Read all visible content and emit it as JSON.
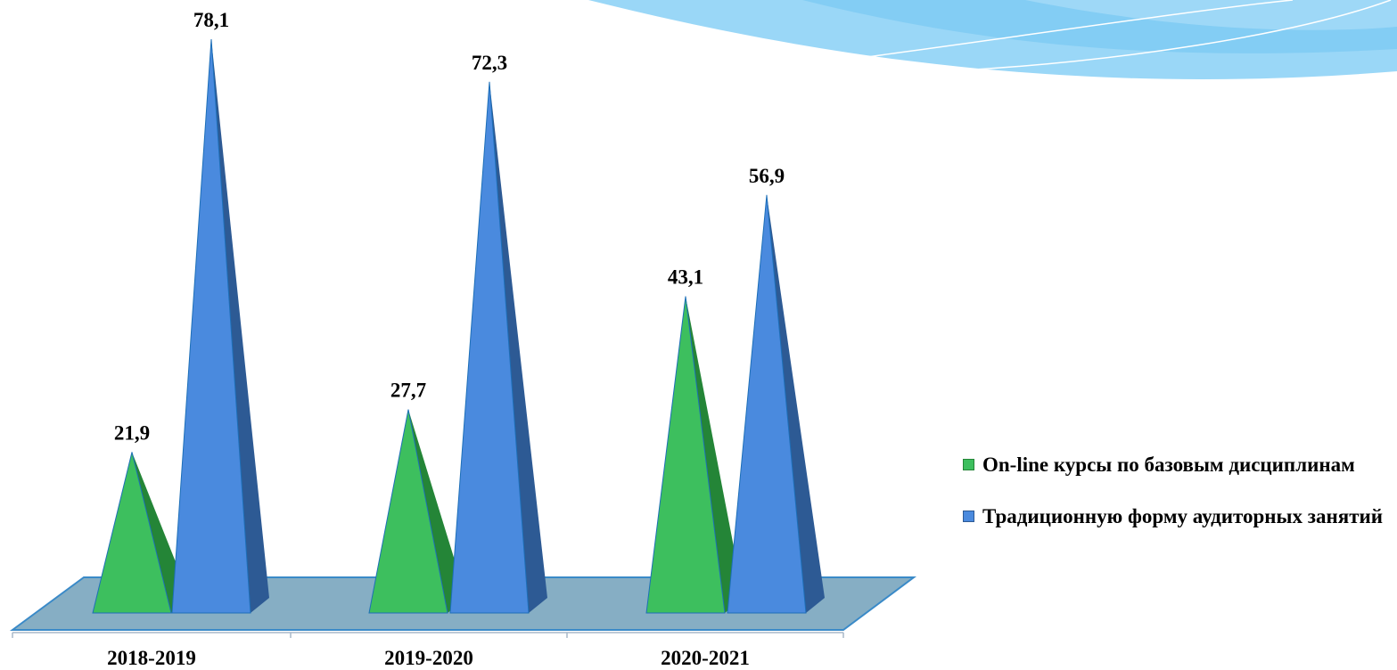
{
  "chart_data": {
    "type": "bar",
    "shape": "3d-pyramid",
    "categories": [
      "2018-2019",
      "2019-2020",
      "2020-2021"
    ],
    "series": [
      {
        "name": "On-line курсы по базовым дисциплинам",
        "values": [
          21.9,
          27.7,
          43.1
        ],
        "labels": [
          "21,9",
          "27,7",
          "43,1"
        ]
      },
      {
        "name": "Традиционную форму аудиторных занятий",
        "values": [
          78.1,
          72.3,
          56.9
        ],
        "labels": [
          "78,1",
          "72,3",
          "56,9"
        ]
      }
    ],
    "legend_position": "right",
    "grid": false,
    "ylim": [
      0,
      80
    ]
  },
  "colors": {
    "series_front": [
      "#3dbf5e",
      "#4a8ade"
    ],
    "series_side": [
      "#248537",
      "#2d5a94"
    ],
    "floor": "#86aec4",
    "floor_edge": "#3a8ac8",
    "decor": "#8fd3f6"
  }
}
